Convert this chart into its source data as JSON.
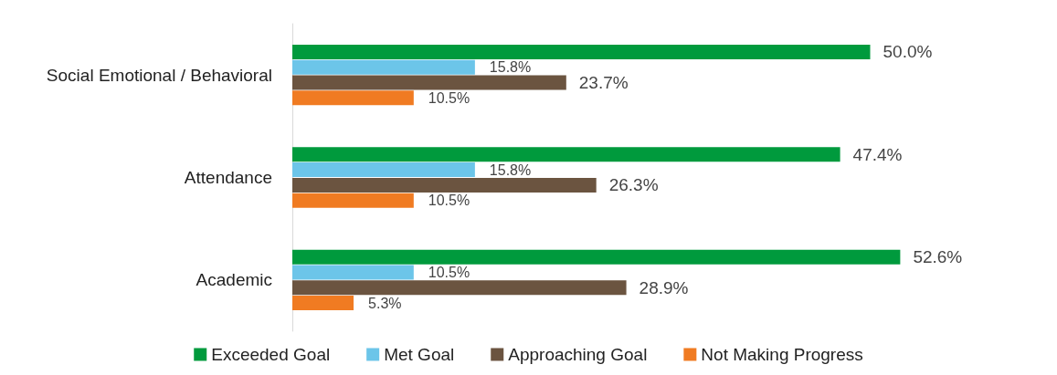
{
  "chart_data": {
    "type": "bar",
    "orientation": "horizontal",
    "categories": [
      "Social Emotional / Behavioral",
      "Attendance",
      "Academic"
    ],
    "series": [
      {
        "name": "Exceeded Goal",
        "color": "#009a3d",
        "values": [
          50.0,
          47.4,
          52.6
        ],
        "value_labels": [
          "50.0%",
          "47.4%",
          "52.6%"
        ]
      },
      {
        "name": "Met Goal",
        "color": "#6cc5e9",
        "values": [
          15.8,
          15.8,
          10.5
        ],
        "value_labels": [
          "15.8%",
          "15.8%",
          "10.5%"
        ]
      },
      {
        "name": "Approaching Goal",
        "color": "#6b5440",
        "values": [
          23.7,
          26.3,
          28.9
        ],
        "value_labels": [
          "23.7%",
          "26.3%",
          "28.9%"
        ]
      },
      {
        "name": "Not Making Progress",
        "color": "#f07b22",
        "values": [
          10.5,
          10.5,
          5.3
        ],
        "value_labels": [
          "10.5%",
          "10.5%",
          "5.3%"
        ]
      }
    ],
    "legend": "bottom"
  }
}
